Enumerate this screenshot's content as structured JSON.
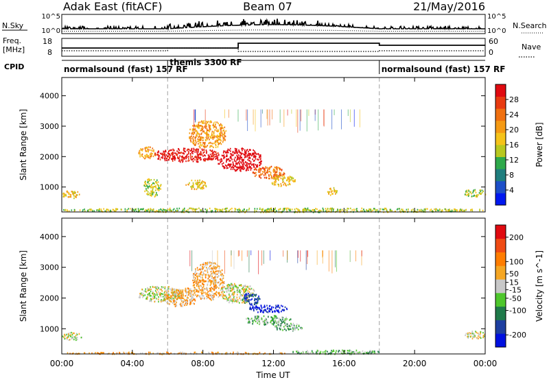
{
  "header": {
    "station": "Adak East (fitACF)",
    "beam": "Beam 07",
    "date": "21/May/2016"
  },
  "noise_panel": {
    "left_label": "N.Sky",
    "right_label": "N.Search",
    "ticks": [
      "10^5",
      "10^0"
    ]
  },
  "freq_panel": {
    "left_label_1": "Freq.",
    "left_label_2": "[MHz]",
    "left_ticks": [
      "18",
      "8"
    ],
    "right_label": "Nave",
    "right_ticks": [
      "60",
      "0"
    ]
  },
  "cpid_panel": {
    "label": "CPID",
    "segments": [
      {
        "name": "normalsound (fast) 157 RF",
        "start": 0,
        "end": 6
      },
      {
        "name": "themis 3300 RF",
        "start": 6,
        "end": 18
      },
      {
        "name": "normalsound (fast) 157 RF",
        "start": 18,
        "end": 24
      }
    ]
  },
  "colors": {
    "power": [
      "#0018f0",
      "#1d4fc8",
      "#1f7e7e",
      "#2ea94b",
      "#b8c820",
      "#f5c31a",
      "#f59a14",
      "#f07010",
      "#e83a10",
      "#e00a10"
    ],
    "velocity": [
      "#0010e0",
      "#1e3fa0",
      "#1f7a4a",
      "#4ec72c",
      "#c8c8c8",
      "#f5a623",
      "#ff7d00",
      "#f04b14",
      "#e00a10"
    ]
  },
  "chart_data": [
    {
      "type": "heatmap",
      "quantity": "Power",
      "xlabel": "Time UT",
      "ylabel": "Slant Range [km]",
      "x_ticks": [
        "00:00",
        "04:00",
        "08:00",
        "12:00",
        "16:00",
        "20:00",
        "00:00"
      ],
      "y_ticks": [
        1000,
        2000,
        3000,
        4000
      ],
      "xlim": [
        0,
        24
      ],
      "ylim": [
        180,
        4600
      ],
      "colorbar": {
        "label": "Power [dB]",
        "ticks": [
          4,
          8,
          12,
          16,
          20,
          24,
          28
        ],
        "range": [
          0,
          32
        ]
      },
      "mode_change_hours": [
        6,
        18
      ],
      "echo_regions": [
        {
          "t0": 0.0,
          "t1": 1.1,
          "r0": 650,
          "r1": 900,
          "level": 5
        },
        {
          "t0": 4.3,
          "t1": 5.3,
          "r0": 1950,
          "r1": 2350,
          "level": 6
        },
        {
          "t0": 5.2,
          "t1": 8.9,
          "r0": 1850,
          "r1": 2300,
          "level": 9
        },
        {
          "t0": 7.2,
          "t1": 9.3,
          "r0": 2300,
          "r1": 3200,
          "level": 6
        },
        {
          "t0": 8.8,
          "t1": 11.3,
          "r0": 1550,
          "r1": 2300,
          "level": 10
        },
        {
          "t0": 10.8,
          "t1": 12.6,
          "r0": 1300,
          "r1": 1700,
          "level": 7
        },
        {
          "t0": 11.8,
          "t1": 13.2,
          "r0": 1050,
          "r1": 1400,
          "level": 5
        },
        {
          "t0": 4.6,
          "t1": 5.6,
          "r0": 700,
          "r1": 1300,
          "level": 4
        },
        {
          "t0": 7.0,
          "t1": 8.2,
          "r0": 950,
          "r1": 1250,
          "level": 5
        },
        {
          "t0": 15.0,
          "t1": 15.6,
          "r0": 750,
          "r1": 1000,
          "level": 5
        },
        {
          "t0": 22.8,
          "t1": 24.0,
          "r0": 700,
          "r1": 950,
          "level": 4
        },
        {
          "t0": 0.0,
          "t1": 24.0,
          "r0": 190,
          "r1": 330,
          "level": 4
        }
      ]
    },
    {
      "type": "heatmap",
      "quantity": "Velocity",
      "xlabel": "Time UT",
      "ylabel": "Slant Range [km]",
      "x_ticks": [
        "00:00",
        "04:00",
        "08:00",
        "12:00",
        "16:00",
        "20:00",
        "00:00"
      ],
      "y_ticks": [
        1000,
        2000,
        3000,
        4000
      ],
      "xlim": [
        0,
        24
      ],
      "ylim": [
        180,
        4600
      ],
      "colorbar": {
        "label": "Velocity [m s^-1]",
        "ticks": [
          200,
          100,
          50,
          15,
          -15,
          -50,
          -100,
          -200
        ],
        "range": [
          -250,
          250
        ]
      },
      "mode_change_hours": [
        6,
        18
      ],
      "echo_regions": [
        {
          "t0": 0.0,
          "t1": 1.1,
          "r0": 650,
          "r1": 900,
          "level": 4
        },
        {
          "t0": 4.3,
          "t1": 6.8,
          "r0": 1900,
          "r1": 2400,
          "level": 4
        },
        {
          "t0": 5.8,
          "t1": 7.7,
          "r0": 1750,
          "r1": 2350,
          "level": 5
        },
        {
          "t0": 7.4,
          "t1": 9.2,
          "r0": 1950,
          "r1": 3200,
          "level": 5
        },
        {
          "t0": 9.0,
          "t1": 10.9,
          "r0": 1850,
          "r1": 2500,
          "level": 4
        },
        {
          "t0": 10.6,
          "t1": 12.8,
          "r0": 1550,
          "r1": 1800,
          "level": 0
        },
        {
          "t0": 10.2,
          "t1": 11.2,
          "r0": 1800,
          "r1": 2200,
          "level": 1
        },
        {
          "t0": 10.4,
          "t1": 13.0,
          "r0": 1150,
          "r1": 1450,
          "level": 3
        },
        {
          "t0": 12.0,
          "t1": 13.6,
          "r0": 950,
          "r1": 1200,
          "level": 3
        },
        {
          "t0": 22.8,
          "t1": 24.0,
          "r0": 700,
          "r1": 950,
          "level": 4
        },
        {
          "t0": 13.0,
          "t1": 18.0,
          "r0": 190,
          "r1": 330,
          "level": 3
        },
        {
          "t0": 0.0,
          "t1": 13.0,
          "r0": 190,
          "r1": 260,
          "level": 5
        }
      ]
    }
  ]
}
